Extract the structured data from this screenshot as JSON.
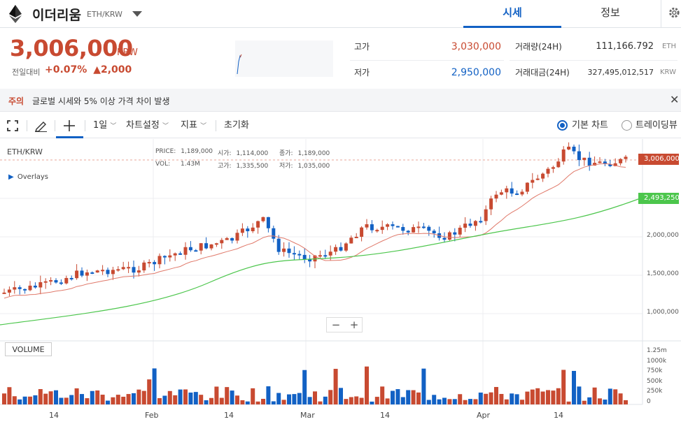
{
  "header": {
    "coin_name": "이더리움",
    "pair": "ETH/KRW",
    "tabs": [
      "시세",
      "정보"
    ]
  },
  "price": {
    "current": "3,006,000",
    "unit": "KRW",
    "change_label": "전일대비",
    "change_pct": "+0.07%",
    "change_amt": "▲2,000"
  },
  "stats": {
    "high_label": "고가",
    "high": "3,030,000",
    "low_label": "저가",
    "low": "2,950,000",
    "volume_label": "거래량(24H)",
    "volume": "111,166.792",
    "volume_unit": "ETH",
    "value_label": "거래대금(24H)",
    "value": "327,495,012,517",
    "value_unit": "KRW"
  },
  "notice": {
    "tag": "주의",
    "text": "글로벌 시세와 5% 이상 가격 차이 발생",
    "close": "✕"
  },
  "toolbar": {
    "interval": "1일",
    "chart_settings": "차트설정",
    "indicators": "지표",
    "reset": "초기화",
    "basic_chart": "기본 차트",
    "tradingview": "트레이딩뷰"
  },
  "chart": {
    "symbol": "ETH/KRW",
    "overlays": "Overlays",
    "info_price_label": "PRICE:",
    "info_price": "1,189,000",
    "info_vol_label": "VOL:",
    "info_vol": "1.43M",
    "info_open_label": "시가:",
    "info_open": "1,114,000",
    "info_high_label": "고가:",
    "info_high": "1,335,500",
    "info_low_label": "저가:",
    "info_low": "1,035,000",
    "info_close_label": "종가:",
    "info_close": "1,189,000",
    "last_price_tag": "3,006,000",
    "ma_tag": "2,493,250",
    "volume_label": "VOLUME",
    "zoom_out": "−",
    "zoom_in": "+",
    "price_ticks": [
      "2,000,000",
      "1,500,000",
      "1,000,000"
    ],
    "volume_ticks": [
      "1.25m",
      "1000k",
      "750k",
      "500k",
      "250k",
      "0"
    ],
    "x_ticks": [
      "14",
      "Feb",
      "14",
      "Mar",
      "14",
      "Apr",
      "14"
    ],
    "colors": {
      "up": "#c84a31",
      "down": "#1261c4",
      "ma_short": "#e0796a",
      "ma_long": "#4cc64c"
    }
  }
}
